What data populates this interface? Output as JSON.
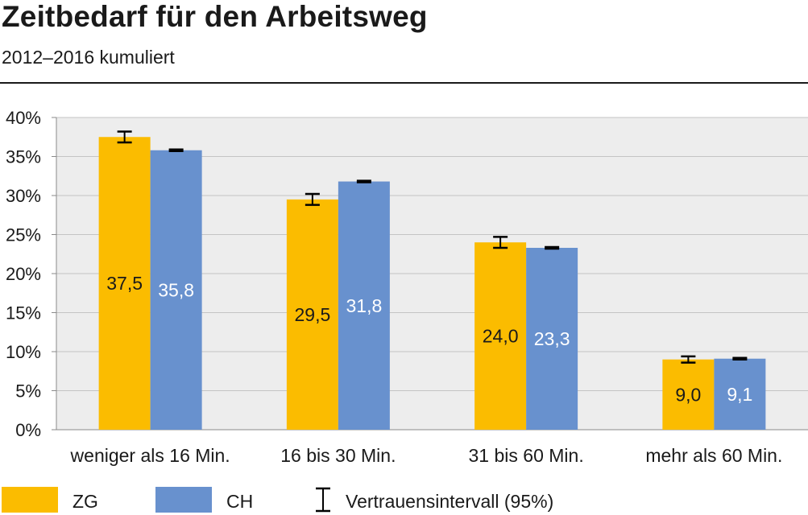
{
  "header": {
    "title": "Zeitbedarf für den Arbeitsweg",
    "subtitle": "2012–2016 kumuliert"
  },
  "chart_data": {
    "type": "bar",
    "categories": [
      "weniger als 16 Min.",
      "16 bis 30 Min.",
      "31 bis 60 Min.",
      "mehr als 60 Min."
    ],
    "series": [
      {
        "name": "ZG",
        "color": "#FBBC00",
        "label_color": "#1a1a1a",
        "values": [
          37.5,
          29.5,
          24.0,
          9.0
        ],
        "value_labels": [
          "37,5",
          "29,5",
          "24,0",
          "9,0"
        ],
        "ci": [
          [
            36.8,
            38.2
          ],
          [
            28.8,
            30.2
          ],
          [
            23.3,
            24.7
          ],
          [
            8.6,
            9.4
          ]
        ]
      },
      {
        "name": "CH",
        "color": "#6891CE",
        "label_color": "#ffffff",
        "values": [
          35.8,
          31.8,
          23.3,
          9.1
        ],
        "value_labels": [
          "35,8",
          "31,8",
          "23,3",
          "9,1"
        ],
        "ci": [
          [
            35.7,
            35.9
          ],
          [
            31.7,
            31.9
          ],
          [
            23.2,
            23.4
          ],
          [
            9.0,
            9.2
          ]
        ]
      }
    ],
    "ylim": [
      0,
      40
    ],
    "yticks": [
      0,
      5,
      10,
      15,
      20,
      25,
      30,
      35,
      40
    ],
    "ytick_labels": [
      "0%",
      "5%",
      "10%",
      "15%",
      "20%",
      "25%",
      "30%",
      "35%",
      "40%"
    ],
    "grid": true,
    "plot_background": "#EDEDED",
    "legend": {
      "position": "bottom",
      "items": [
        {
          "label": "ZG",
          "color": "#FBBC00",
          "kind": "swatch"
        },
        {
          "label": "CH",
          "color": "#6891CE",
          "kind": "swatch"
        },
        {
          "label": "Vertrauensintervall (95%)",
          "kind": "errorbar"
        }
      ]
    }
  }
}
